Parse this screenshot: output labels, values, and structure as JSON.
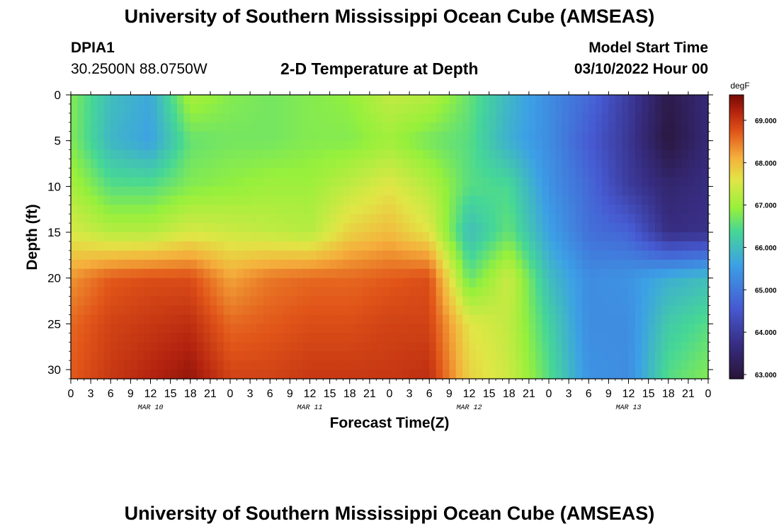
{
  "header": {
    "title": "University of Southern Mississippi Ocean Cube (AMSEAS)",
    "station": "DPIA1",
    "coords": "30.2500N  88.0750W",
    "subtitle": "2-D Temperature at Depth",
    "model_start_label": "Model Start Time",
    "model_start_value": "03/10/2022 Hour 00"
  },
  "footer": {
    "title": "University of Southern Mississippi Ocean Cube (AMSEAS)"
  },
  "chart_data": {
    "type": "heatmap",
    "title": "2-D Temperature at Depth",
    "xlabel": "Forecast Time(Z)",
    "ylabel": "Depth (ft)",
    "x_tick_labels": [
      "0",
      "3",
      "6",
      "9",
      "12",
      "15",
      "18",
      "21",
      "0",
      "3",
      "6",
      "9",
      "12",
      "15",
      "18",
      "21",
      "0",
      "3",
      "6",
      "9",
      "12",
      "15",
      "18",
      "21",
      "0",
      "3",
      "6",
      "9",
      "12",
      "15",
      "18",
      "21",
      "0"
    ],
    "day_labels": [
      "MAR 10",
      "MAR 11",
      "MAR 12",
      "MAR 13"
    ],
    "x_range_hours": [
      0,
      96
    ],
    "y_ticks": [
      0,
      5,
      10,
      15,
      20,
      25,
      30
    ],
    "y_range_ft": [
      0,
      31
    ],
    "y_inverted": true,
    "colorbar": {
      "units": "degF",
      "ticks": [
        63.0,
        64.0,
        65.0,
        66.0,
        67.0,
        68.0,
        69.0
      ],
      "tick_labels": [
        "63.000",
        "64.000",
        "65.000",
        "66.000",
        "67.000",
        "68.000",
        "69.000"
      ],
      "range": [
        62.9,
        69.6
      ]
    },
    "depths_ft": [
      0,
      5,
      10,
      15,
      20,
      25,
      31
    ],
    "hours": [
      0,
      6,
      12,
      18,
      24,
      30,
      36,
      42,
      48,
      54,
      60,
      66,
      72,
      78,
      84,
      90,
      96
    ],
    "temperature_degF": [
      [
        66.8,
        66.0,
        65.7,
        67.1,
        66.8,
        66.7,
        66.8,
        66.9,
        67.3,
        67.2,
        66.6,
        65.9,
        65.3,
        64.8,
        64.0,
        63.1,
        63.6
      ],
      [
        66.8,
        65.9,
        65.6,
        66.6,
        66.7,
        66.7,
        66.8,
        66.8,
        67.0,
        66.7,
        66.5,
        65.8,
        65.3,
        64.6,
        63.9,
        63.0,
        63.6
      ],
      [
        67.1,
        66.5,
        66.5,
        66.8,
        66.9,
        67.0,
        67.0,
        67.3,
        67.6,
        67.2,
        66.5,
        66.4,
        65.4,
        64.8,
        64.0,
        63.5,
        63.7
      ],
      [
        67.5,
        67.2,
        67.2,
        67.5,
        67.4,
        67.3,
        67.2,
        67.8,
        68.0,
        67.6,
        66.0,
        66.6,
        65.6,
        64.9,
        64.7,
        63.7,
        63.8
      ],
      [
        68.3,
        68.7,
        68.8,
        68.8,
        68.2,
        68.5,
        68.6,
        68.6,
        68.7,
        68.8,
        66.6,
        67.4,
        66.0,
        65.3,
        65.4,
        65.8,
        66.0
      ],
      [
        68.6,
        68.9,
        69.0,
        69.1,
        68.6,
        68.7,
        68.8,
        68.8,
        68.9,
        68.9,
        67.6,
        67.3,
        66.3,
        65.3,
        65.3,
        66.2,
        66.5
      ],
      [
        68.7,
        69.0,
        69.2,
        69.4,
        68.9,
        68.9,
        69.0,
        69.0,
        69.0,
        69.1,
        67.8,
        67.4,
        66.5,
        65.4,
        65.3,
        66.5,
        66.8
      ]
    ]
  }
}
